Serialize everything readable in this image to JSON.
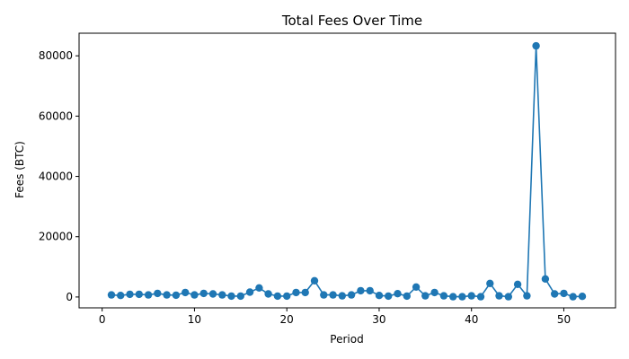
{
  "chart_data": {
    "type": "line",
    "title": "Total Fees Over Time",
    "xlabel": "Period",
    "ylabel": "Fees (BTC)",
    "xlim": [
      -2.5,
      55.6
    ],
    "ylim": [
      -3600,
      87500
    ],
    "xticks": [
      0,
      10,
      20,
      30,
      40,
      50
    ],
    "yticks": [
      0,
      20000,
      40000,
      60000,
      80000
    ],
    "grid": false,
    "color": "#1f77b4",
    "marker": "circle",
    "x": [
      1,
      2,
      3,
      4,
      5,
      6,
      7,
      8,
      9,
      10,
      11,
      12,
      13,
      14,
      15,
      16,
      17,
      18,
      19,
      20,
      21,
      22,
      23,
      24,
      25,
      26,
      27,
      28,
      29,
      30,
      31,
      32,
      33,
      34,
      35,
      36,
      37,
      38,
      39,
      40,
      41,
      42,
      43,
      44,
      45,
      46,
      47,
      48,
      49,
      50,
      51,
      52
    ],
    "y": [
      700,
      500,
      900,
      900,
      700,
      1200,
      700,
      600,
      1500,
      700,
      1200,
      1000,
      700,
      300,
      300,
      1600,
      3000,
      1000,
      300,
      300,
      1500,
      1500,
      5400,
      700,
      700,
      400,
      700,
      2100,
      2100,
      500,
      300,
      1100,
      300,
      3300,
      400,
      1500,
      400,
      100,
      100,
      400,
      100,
      4500,
      400,
      100,
      4200,
      400,
      83300,
      6000,
      1000,
      1200,
      100,
      200
    ]
  }
}
